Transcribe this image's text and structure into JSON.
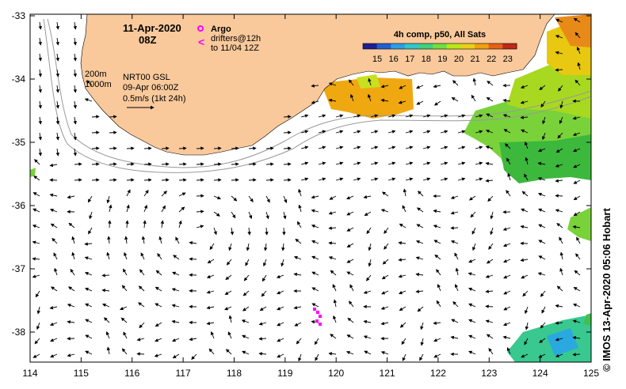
{
  "header": {
    "date": "11-Apr-2020",
    "time": "08Z"
  },
  "legend": {
    "argo_label": "Argo",
    "drifter_label": "drifters@12h",
    "drifter_range": "to 11/04 12Z",
    "drifter_symbol": "<"
  },
  "isobaths": {
    "shallow": "200m",
    "deep": "1000m"
  },
  "currents": {
    "source": "NRT00 GSL",
    "time": "09-Apr 06:00Z",
    "scale": "0.5m/s (1kt 24h)"
  },
  "sst_colorbar": {
    "title": "4h comp, p50, All Sats",
    "ticks": [
      "15",
      "16",
      "17",
      "18",
      "19",
      "20",
      "21",
      "22",
      "23"
    ],
    "colors": [
      "#1e1e96",
      "#1f5fd0",
      "#2a9fe6",
      "#30c8c8",
      "#40d080",
      "#70e040",
      "#b8e818",
      "#e8d018",
      "#f0a010",
      "#e86018",
      "#c02818"
    ]
  },
  "axes": {
    "x_ticks": [
      "114",
      "115",
      "116",
      "117",
      "118",
      "119",
      "120",
      "121",
      "122",
      "123",
      "124",
      "125"
    ],
    "y_ticks": [
      "-33",
      "-34",
      "-35",
      "-36",
      "-37",
      "-38"
    ]
  },
  "credit": "© IMOS 13-Apr-2020 05:06 Hobart",
  "colors": {
    "land": "#f9c99b",
    "argo": "#ff00ff",
    "drifter": "#ff00ff"
  }
}
